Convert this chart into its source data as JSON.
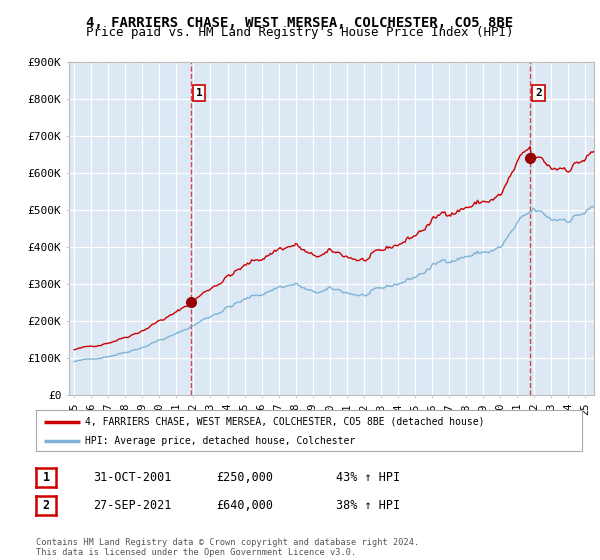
{
  "title": "4, FARRIERS CHASE, WEST MERSEA, COLCHESTER, CO5 8BE",
  "subtitle": "Price paid vs. HM Land Registry's House Price Index (HPI)",
  "title_fontsize": 10,
  "subtitle_fontsize": 9,
  "ylabel_ticks": [
    "£0",
    "£100K",
    "£200K",
    "£300K",
    "£400K",
    "£500K",
    "£600K",
    "£700K",
    "£800K",
    "£900K"
  ],
  "ytick_values": [
    0,
    100000,
    200000,
    300000,
    400000,
    500000,
    600000,
    700000,
    800000,
    900000
  ],
  "ylim": [
    0,
    900000
  ],
  "xlim_start": 1994.7,
  "xlim_end": 2025.5,
  "purchase1": {
    "date_x": 2001.83,
    "price": 250000,
    "label": "1",
    "date_str": "31-OCT-2001",
    "price_str": "£250,000",
    "pct_str": "43% ↑ HPI"
  },
  "purchase2": {
    "date_x": 2021.75,
    "price": 640000,
    "label": "2",
    "date_str": "27-SEP-2021",
    "price_str": "£640,000",
    "pct_str": "38% ↑ HPI"
  },
  "line_color_price": "#cc0000",
  "line_color_hpi": "#7fb3d3",
  "vline_color": "#cc0000",
  "grid_color": "#cccccc",
  "plot_bg_color": "#dce9f5",
  "background_color": "#ffffff",
  "legend_label_price": "4, FARRIERS CHASE, WEST MERSEA, COLCHESTER, CO5 8BE (detached house)",
  "legend_label_hpi": "HPI: Average price, detached house, Colchester",
  "footer_text": "Contains HM Land Registry data © Crown copyright and database right 2024.\nThis data is licensed under the Open Government Licence v3.0.",
  "xtick_labels": [
    "95",
    "96",
    "97",
    "98",
    "99",
    "00",
    "01",
    "02",
    "03",
    "04",
    "05",
    "06",
    "07",
    "08",
    "09",
    "10",
    "11",
    "12",
    "13",
    "14",
    "15",
    "16",
    "17",
    "18",
    "19",
    "20",
    "21",
    "22",
    "23",
    "24",
    "25"
  ],
  "xtick_years": [
    1995,
    1996,
    1997,
    1998,
    1999,
    2000,
    2001,
    2002,
    2003,
    2004,
    2005,
    2006,
    2007,
    2008,
    2009,
    2010,
    2011,
    2012,
    2013,
    2014,
    2015,
    2016,
    2017,
    2018,
    2019,
    2020,
    2021,
    2022,
    2023,
    2024,
    2025
  ]
}
